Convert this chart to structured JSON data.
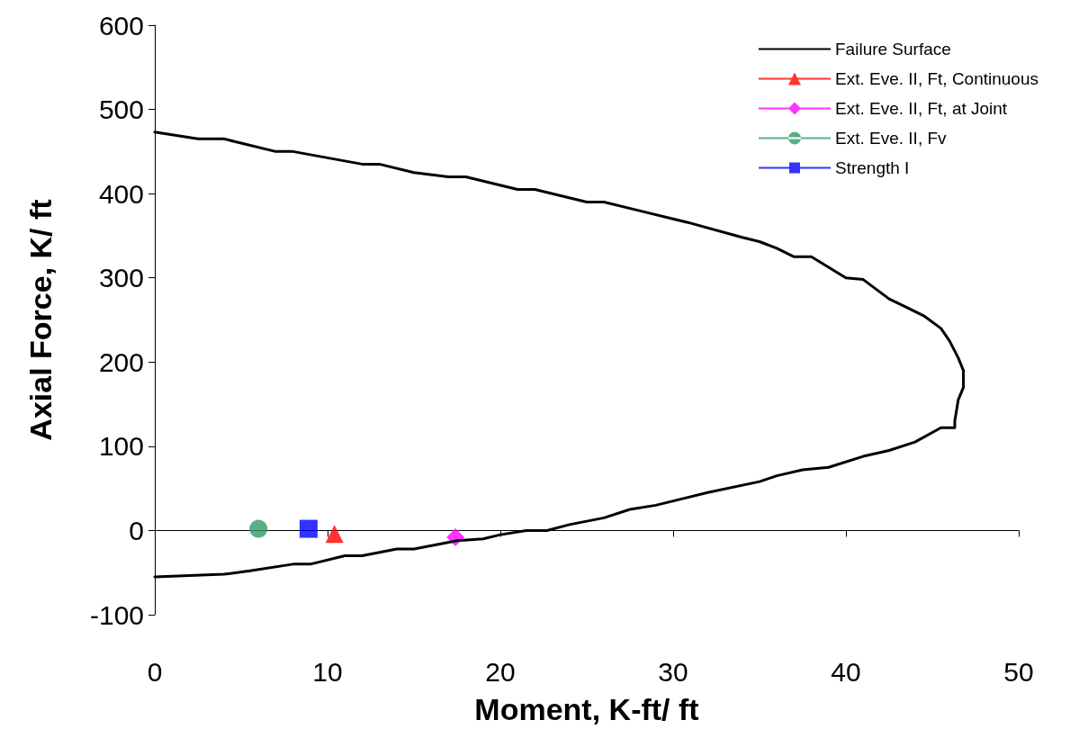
{
  "chart_data": {
    "type": "line",
    "xlabel": "Moment, K-ft/ ft",
    "ylabel": "Axial Force, K/ ft",
    "xlim": [
      0,
      50
    ],
    "xticks": [
      0,
      10,
      20,
      30,
      40,
      50
    ],
    "ylim": [
      -100,
      600
    ],
    "yticks": [
      -100,
      0,
      100,
      200,
      300,
      400,
      500,
      600
    ],
    "legend": "top right",
    "series": [
      {
        "name": "Failure Surface",
        "type": "line",
        "color": "#000000",
        "marker": "none",
        "line_style": "solid",
        "x": [
          0,
          2.5,
          4,
          7,
          8,
          12,
          13,
          15,
          17,
          18,
          21,
          22,
          25,
          26,
          28,
          30,
          31,
          34,
          35,
          36,
          37,
          38,
          40,
          41,
          42.5,
          43.5,
          44.5,
          45.5,
          46,
          46.5,
          46.8,
          46.8,
          46.5,
          46.3,
          46.3,
          45.5,
          44,
          42.5,
          41,
          39,
          37.5,
          36,
          35,
          32,
          29,
          27.5,
          26,
          24,
          22.7,
          21.5,
          20,
          19,
          17.5,
          15,
          14,
          12,
          11,
          9,
          8,
          5.5,
          4,
          0
        ],
        "values": [
          473,
          465,
          465,
          450,
          450,
          435,
          435,
          425,
          420,
          420,
          405,
          405,
          390,
          390,
          380,
          370,
          365,
          348,
          343,
          335,
          325,
          325,
          300,
          298,
          275,
          265,
          255,
          240,
          225,
          205,
          190,
          170,
          155,
          130,
          122,
          122,
          105,
          95,
          88,
          75,
          72,
          65,
          58,
          45,
          30,
          25,
          15,
          7,
          0,
          0,
          -5,
          -10,
          -12,
          -22,
          -22,
          -30,
          -30,
          -40,
          -40,
          -48,
          -52,
          -55
        ]
      },
      {
        "name": "Ext. Eve. II, Ft, Continuous",
        "type": "scatter",
        "color": "#ff0000",
        "marker": "triangle",
        "x": [
          10.4
        ],
        "values": [
          -4
        ]
      },
      {
        "name": "Ext. Eve. II, Ft, at Joint",
        "type": "scatter",
        "color": "#ff00ff",
        "marker": "diamond",
        "x": [
          17.4
        ],
        "values": [
          -8
        ]
      },
      {
        "name": "Ext. Eve. II, Fv",
        "type": "scatter",
        "color": "#339966",
        "marker": "circle",
        "x": [
          6
        ],
        "values": [
          2
        ]
      },
      {
        "name": "Strength I",
        "type": "scatter",
        "color": "#0000ff",
        "marker": "square",
        "x": [
          8.9
        ],
        "values": [
          2
        ]
      }
    ]
  }
}
